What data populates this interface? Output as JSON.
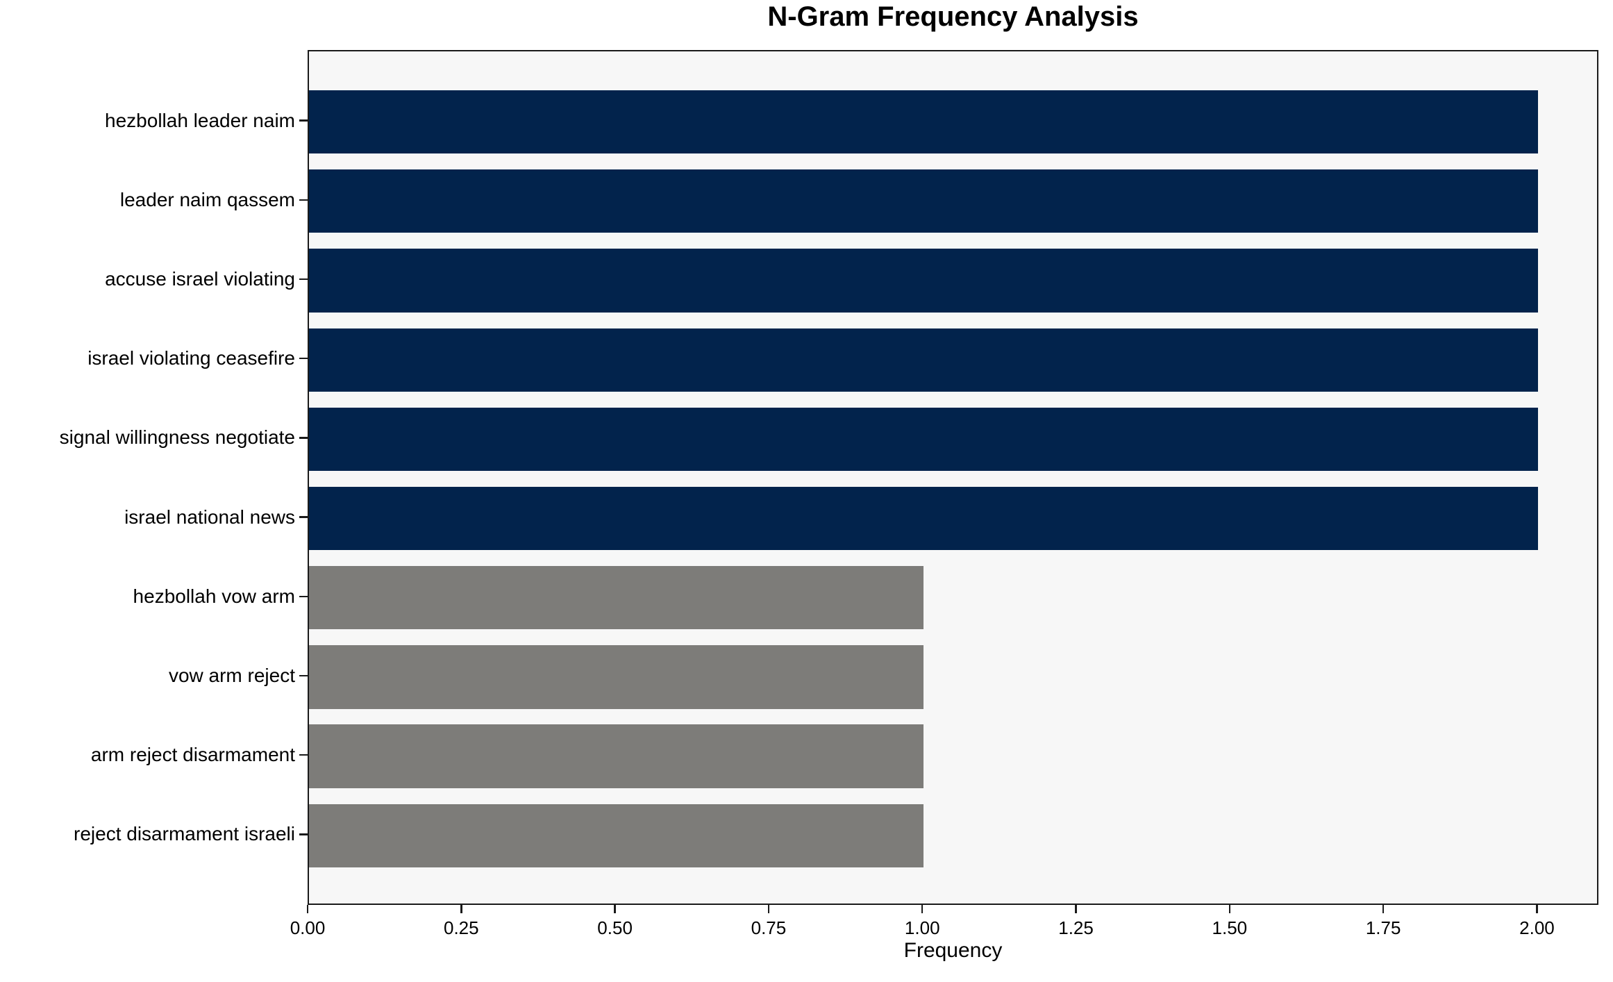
{
  "chart_data": {
    "type": "bar",
    "orientation": "horizontal",
    "title": "N-Gram Frequency Analysis",
    "xlabel": "Frequency",
    "ylabel": "",
    "categories": [
      "hezbollah leader naim",
      "leader naim qassem",
      "accuse israel violating",
      "israel violating ceasefire",
      "signal willingness negotiate",
      "israel national news",
      "hezbollah vow arm",
      "vow arm reject",
      "arm reject disarmament",
      "reject disarmament israeli"
    ],
    "values": [
      2,
      2,
      2,
      2,
      2,
      2,
      1,
      1,
      1,
      1
    ],
    "bar_colors": [
      "#02234c",
      "#02234c",
      "#02234c",
      "#02234c",
      "#02234c",
      "#02234c",
      "#7d7c79",
      "#7d7c79",
      "#7d7c79",
      "#7d7c79"
    ],
    "xlim": [
      0,
      2.1
    ],
    "xticks": [
      {
        "value": 0.0,
        "label": "0.00"
      },
      {
        "value": 0.25,
        "label": "0.25"
      },
      {
        "value": 0.5,
        "label": "0.50"
      },
      {
        "value": 0.75,
        "label": "0.75"
      },
      {
        "value": 1.0,
        "label": "1.00"
      },
      {
        "value": 1.25,
        "label": "1.25"
      },
      {
        "value": 1.5,
        "label": "1.50"
      },
      {
        "value": 1.75,
        "label": "1.75"
      },
      {
        "value": 2.0,
        "label": "2.00"
      }
    ],
    "grid": false,
    "legend": false,
    "colors": {
      "high_frequency_bar": "#02234c",
      "low_frequency_bar": "#7d7c79",
      "plot_background": "#f7f7f7",
      "figure_background": "#ffffff",
      "spine": "#1a1a1a",
      "text": "#000000"
    }
  }
}
